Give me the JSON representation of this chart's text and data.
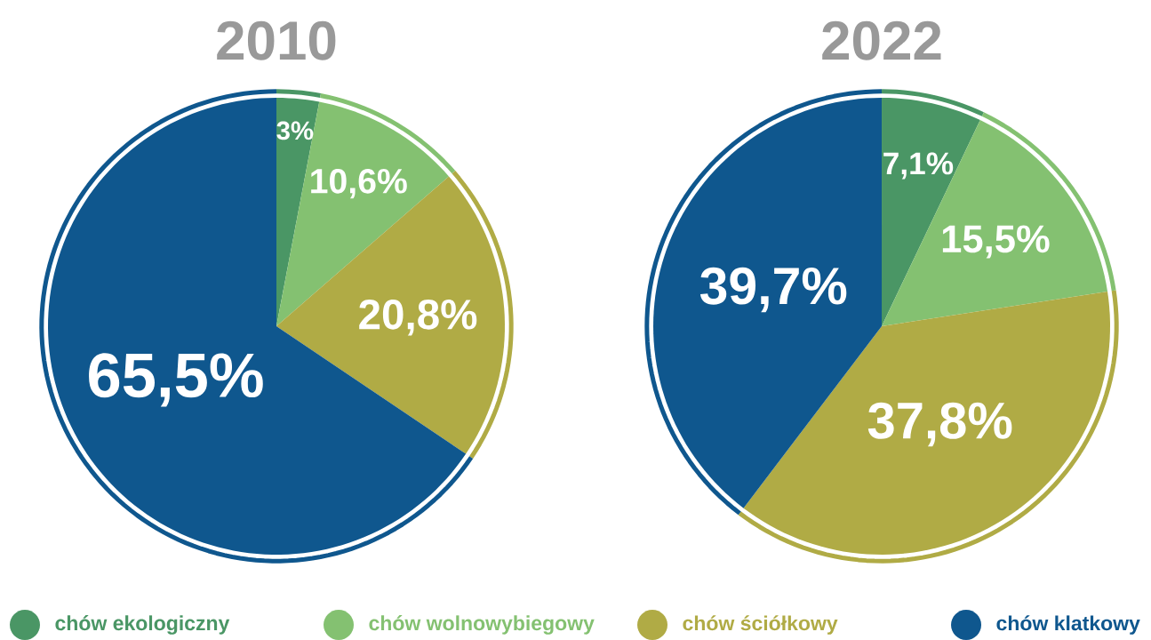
{
  "chart_data": [
    {
      "type": "pie",
      "title": "2010",
      "categories": [
        "chów ekologiczny",
        "chów wolnowybiegowy",
        "chów ściółkowy",
        "chów klatkowy"
      ],
      "values": [
        3,
        10.6,
        20.8,
        65.5
      ],
      "value_labels": [
        "3%",
        "10,6%",
        "20,8%",
        "65,5%"
      ],
      "colors": [
        "#4a9665",
        "#84c171",
        "#b0ab45",
        "#0f578e"
      ],
      "legend": "bottom"
    },
    {
      "type": "pie",
      "title": "2022",
      "values": [
        7.1,
        15.5,
        37.8,
        39.7
      ],
      "value_labels": [
        "7,1%",
        "15,5%",
        "37,8%",
        "39,7%"
      ],
      "colors": [
        "#4a9665",
        "#84c171",
        "#b0ab45",
        "#0f578e"
      ]
    }
  ]
}
